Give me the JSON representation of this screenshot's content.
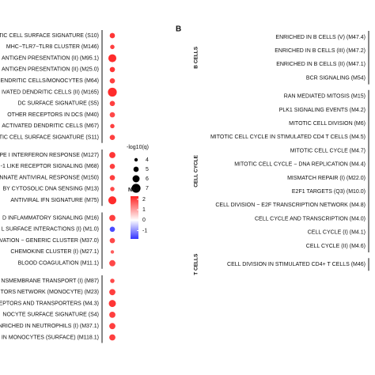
{
  "chart_data": [
    {
      "type": "dotplot",
      "categories": [
        "TIC CELL SURFACE SIGNATURE (S10)",
        "MHC−TLR7−TLR8 CLUSTER (M146)",
        "ANTIGEN PRESENTATION (II) (M95.1)",
        "ANTIGEN PRESENTATION (II) (M25.0)",
        "ENDRITIC CELLS/MONOCYTES (M64)",
        "IVATED DENDRITIC CELLS (II) (M165)",
        "DC SURFACE SIGNATURE (S5)",
        "OTHER RECEPTORS IN DCS (M40)",
        "ACTIVATED DENDRITIC CELLS (M67)",
        "TIC CELL SURFACE SIGNATURE (S11)",
        "PE I INTERFERON RESPONSE (M127)",
        "-1 LIKE RECEPTOR SIGNALING (M68)",
        "NNATE ANTIVIRAL RESPONSE (M150)",
        "BY CYTOSOLIC DNA SENSING (M13)",
        "ANTIVIRAL IFN SIGNATURE (M75)",
        "D INFLAMMATORY SIGNALING (M16)",
        "L SURFACE INTERACTIONS (I) (M1.0)",
        "VATION − GENERIC CLUSTER (M37.0)",
        "CHEMOKINE CLUSTER (I) (M27.1)",
        "BLOOD COAGULATION (M11.1)",
        "NSMEMBRANE TRANSPORT (I) (M87)",
        "TORS NETWORK (MONOCYTE) (M23)",
        "EPTORS AND TRANSPORTERS (M4.3)",
        "NOCYTE SURFACE SIGNATURE (S4)",
        "NRICHED IN NEUTROPHILS (I) (M37.1)",
        "IN MONOCYTES (SURFACE) (M118.1)"
      ],
      "groups": [
        10,
        5,
        5,
        6
      ],
      "nes": [
        2.1,
        2.0,
        2.2,
        2.1,
        2.0,
        2.2,
        2.0,
        1.9,
        2.0,
        2.0,
        2.1,
        2.0,
        2.0,
        1.9,
        2.2,
        2.0,
        -1.6,
        1.9,
        1.7,
        1.9,
        1.9,
        2.0,
        2.1,
        2.0,
        2.0,
        2.0
      ],
      "neglog10q": [
        5,
        4.5,
        6.5,
        5,
        5,
        7,
        5,
        5,
        4.5,
        5,
        5.5,
        5,
        5,
        4.5,
        6.5,
        5.5,
        5,
        5,
        4,
        5.5,
        4.5,
        5.5,
        6,
        5.5,
        5.5,
        5.5
      ],
      "size_legend": {
        "title": "-log10(q)",
        "values": [
          4,
          5,
          6,
          7
        ]
      },
      "color_legend": {
        "title": "NES",
        "clim": [
          -1.8,
          2.3
        ],
        "ticks": [
          2,
          1,
          0,
          -1
        ],
        "colors": [
          "#3333ff",
          "#ffffff",
          "#ff2222"
        ]
      }
    },
    {
      "type": "dotplot-labels",
      "panel": "B",
      "categories": [
        "ENRICHED IN B CELLS (V) (M47.4)",
        "ENRICHED IN B CELLS (III) (M47.2)",
        "ENRICHED IN B CELLS (II) (M47.1)",
        "BCR SIGNALING (M54)",
        "RAN MEDIATED MITOSIS (M15)",
        "PLK1 SIGNALING EVENTS (M4.2)",
        "MITOTIC CELL DIVISION (M6)",
        "MITOTIC CELL CYCLE IN STIMULATED CD4 T CELLS (M4.5)",
        "MITOTIC CELL CYCLE (M4.7)",
        "MITOTIC CELL CYCLE − DNA REPLICATION (M4.4)",
        "MISMATCH REPAIR (I) (M22.0)",
        "E2F1 TARGETS (Q3) (M10.0)",
        "CELL DIVISION − E2F TRANSCRIPTION NETWORK (M4.8)",
        "CELL CYCLE AND TRANSCRIPTION (M4.0)",
        "CELL CYCLE (I) (M4.1)",
        "CELL CYCLE (II) (M4.6)",
        "CELL DIVISION IN STIMULATED CD4+ T CELLS (M46)"
      ],
      "group_names": [
        "B CELLS",
        "CELL CYCLE",
        "T CELLS"
      ],
      "groups": [
        4,
        12,
        1
      ]
    }
  ]
}
